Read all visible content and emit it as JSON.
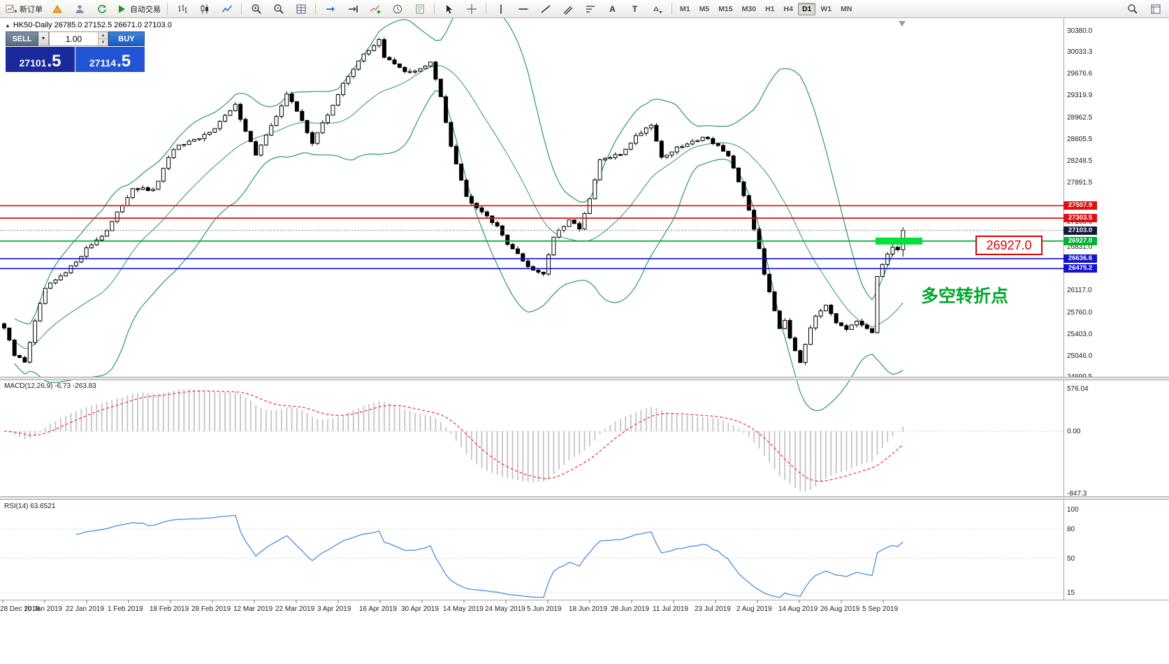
{
  "toolbar": {
    "new_order_label": "新订单",
    "auto_trading_label": "自动交易",
    "timeframes": [
      "M1",
      "M5",
      "M15",
      "M30",
      "H1",
      "H4",
      "D1",
      "W1",
      "MN"
    ],
    "active_timeframe": "D1"
  },
  "chart_header": {
    "collapse_marker": "▲",
    "title": "HK50-Daily 26785.0 27152.5 26671.0 27103.0"
  },
  "trade_panel": {
    "sell_label": "SELL",
    "buy_label": "BUY",
    "volume_value": "1.00",
    "sell_price_main": "27101",
    "sell_price_frac": ".5",
    "buy_price_main": "27114",
    "buy_price_frac": ".5",
    "sell_color": "#1b2a9b",
    "buy_color": "#2254d3"
  },
  "annotations": {
    "price_callout": "26927.0",
    "callout_color": "#e00000",
    "turning_point_label": "多空转折点",
    "turning_point_color": "#00a82d",
    "highlight_zone": {
      "level": 26927.0,
      "color": "#00e13c"
    }
  },
  "price_axis": {
    "top_price": 30380.0,
    "bottom_price": 24699.5,
    "grid_labels": [
      "30380.0",
      "30033.3",
      "29676.6",
      "29319.9",
      "28962.5",
      "28605.5",
      "28248.5",
      "27891.5",
      "27168.0",
      "26831.0",
      "26117.0",
      "25760.0",
      "25403.0",
      "25046.0",
      "24699.5"
    ],
    "marked_levels": [
      {
        "label": "27507.9",
        "value": 27507.9,
        "color": "#dd1111",
        "line_style": "solid"
      },
      {
        "label": "27303.5",
        "value": 27303.5,
        "color": "#dd1111",
        "line_style": "solid"
      },
      {
        "label": "27103.0",
        "value": 27103.0,
        "color": "#141a3c",
        "line_style": "dotted"
      },
      {
        "label": "26927.0",
        "value": 26927.0,
        "color": "#00b22d",
        "line_style": "solid"
      },
      {
        "label": "26636.6",
        "value": 26636.6,
        "color": "#1414cc",
        "line_style": "solid"
      },
      {
        "label": "26475.2",
        "value": 26475.2,
        "color": "#1414cc",
        "line_style": "solid"
      }
    ]
  },
  "macd_panel": {
    "label": "MACD(12,26,9) -6.73 -263.83",
    "axis_labels": [
      "576.04",
      "0.00",
      "-847.3"
    ]
  },
  "rsi_panel": {
    "label": "RSI(14) 63.6521",
    "axis_labels": [
      "100",
      "80",
      "50",
      "15"
    ],
    "levels": [
      80,
      50,
      15
    ]
  },
  "date_axis": {
    "labels": [
      "28 Dec 2018",
      "10 Jan 2019",
      "22 Jan 2019",
      "1 Feb 2019",
      "18 Feb 2019",
      "28 Feb 2019",
      "12 Mar 2019",
      "22 Mar 2019",
      "3 Apr 2019",
      "16 Apr 2019",
      "30 Apr 2019",
      "14 May 2019",
      "24 May 2019",
      "5 Jun 2019",
      "18 Jun 2019",
      "28 Jun 2019",
      "11 Jul 2019",
      "23 Jul 2019",
      "2 Aug 2019",
      "14 Aug 2019",
      "26 Aug 2019",
      "5 Sep 2019"
    ]
  },
  "chart_data": {
    "type": "candlestick",
    "symbol": "HK50",
    "period": "Daily",
    "ohlc_header": {
      "open": 26785.0,
      "high": 27152.5,
      "low": 26671.0,
      "close": 27103.0
    },
    "bar_count": 176,
    "close_anchors": [
      [
        0,
        25500
      ],
      [
        2,
        25050
      ],
      [
        4,
        24950
      ],
      [
        6,
        25600
      ],
      [
        8,
        26150
      ],
      [
        12,
        26400
      ],
      [
        16,
        26800
      ],
      [
        20,
        27100
      ],
      [
        25,
        27800
      ],
      [
        29,
        27750
      ],
      [
        33,
        28450
      ],
      [
        38,
        28600
      ],
      [
        41,
        28800
      ],
      [
        45,
        29150
      ],
      [
        49,
        28350
      ],
      [
        52,
        28800
      ],
      [
        55,
        29350
      ],
      [
        58,
        28900
      ],
      [
        60,
        28550
      ],
      [
        63,
        29000
      ],
      [
        66,
        29500
      ],
      [
        69,
        29900
      ],
      [
        71,
        30050
      ],
      [
        73,
        30250
      ],
      [
        74,
        29950
      ],
      [
        78,
        29700
      ],
      [
        81,
        29750
      ],
      [
        83,
        29850
      ],
      [
        85,
        29300
      ],
      [
        87,
        28500
      ],
      [
        90,
        27650
      ],
      [
        94,
        27350
      ],
      [
        96,
        27150
      ],
      [
        98,
        26900
      ],
      [
        101,
        26600
      ],
      [
        103,
        26450
      ],
      [
        105,
        26400
      ],
      [
        107,
        27000
      ],
      [
        110,
        27250
      ],
      [
        112,
        27150
      ],
      [
        114,
        27600
      ],
      [
        116,
        28250
      ],
      [
        118,
        28300
      ],
      [
        120,
        28350
      ],
      [
        123,
        28650
      ],
      [
        126,
        28850
      ],
      [
        128,
        28300
      ],
      [
        131,
        28450
      ],
      [
        134,
        28550
      ],
      [
        136,
        28650
      ],
      [
        139,
        28500
      ],
      [
        141,
        28300
      ],
      [
        143,
        27900
      ],
      [
        145,
        27450
      ],
      [
        146,
        27100
      ],
      [
        147,
        26800
      ],
      [
        148,
        26400
      ],
      [
        149,
        26100
      ],
      [
        150,
        25800
      ],
      [
        151,
        25500
      ],
      [
        152,
        25650
      ],
      [
        153,
        25350
      ],
      [
        155,
        24950
      ],
      [
        156,
        25250
      ],
      [
        158,
        25700
      ],
      [
        160,
        25900
      ],
      [
        162,
        25600
      ],
      [
        164,
        25450
      ],
      [
        166,
        25600
      ],
      [
        168,
        25480
      ],
      [
        169,
        25420
      ],
      [
        170,
        26350
      ],
      [
        171,
        26550
      ],
      [
        172,
        26700
      ],
      [
        173,
        26800
      ],
      [
        174,
        26785
      ],
      [
        175,
        27103
      ]
    ],
    "indicators": {
      "bollinger": {
        "period": 20,
        "deviation": 2,
        "color": "#2a9d5c"
      },
      "macd": {
        "fast": 12,
        "slow": 26,
        "signal": 9,
        "main_value": -6.73,
        "signal_value": -263.83,
        "histogram_color": "#c4c4c4",
        "signal_color": "#ff2a2a",
        "range": [
          576.04,
          -847.3
        ]
      },
      "rsi": {
        "period": 14,
        "value": 63.6521,
        "color": "#4a8fe0"
      }
    },
    "levels": {
      "resistance": [
        27507.9,
        27303.5
      ],
      "last_price": 27103.0,
      "pivot": 26927.0,
      "support": [
        26636.6,
        26475.2
      ]
    }
  }
}
